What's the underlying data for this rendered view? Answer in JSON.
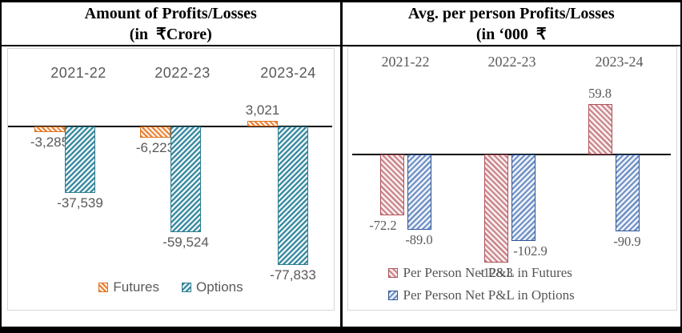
{
  "chart_data": [
    {
      "type": "bar",
      "panel": "left",
      "title_lines": [
        "Amount of Profits/Losses",
        "(in  ₹Crore)"
      ],
      "categories": [
        "2021-22",
        "2022-23",
        "2023-24"
      ],
      "series": [
        {
          "name": "Futures",
          "values": [
            -3285,
            -6223,
            3021
          ],
          "labels": [
            "-3,285",
            "-6,223",
            "3,021"
          ]
        },
        {
          "name": "Options",
          "values": [
            -37539,
            -59524,
            -77833
          ],
          "labels": [
            "-37,539",
            "-59,524",
            "-77,833"
          ]
        }
      ],
      "legend": {
        "position": "bottom-center",
        "entries": [
          "Futures",
          "Options"
        ]
      },
      "axis": {
        "baseline": 0,
        "gridlines": false,
        "approx_value_range": [
          -80000,
          10000
        ]
      },
      "colors": {
        "futures": "#ed7d31",
        "options": "#31859c",
        "label_text": "#595959",
        "axis": "#000000"
      }
    },
    {
      "type": "bar",
      "panel": "right",
      "title_lines": [
        "Avg. per person Profits/Losses",
        "(in ‘000  ₹"
      ],
      "categories": [
        "2021-22",
        "2022-23",
        "2023-24"
      ],
      "series": [
        {
          "name": "Per Person Net P&L in Futures",
          "values": [
            -72.2,
            -128.3,
            59.8
          ],
          "labels": [
            "-72.2",
            "-128.3",
            "59.8"
          ]
        },
        {
          "name": "Per Person Net P&L in Options",
          "values": [
            -89.0,
            -102.9,
            -90.9
          ],
          "labels": [
            "-89.0",
            "-102.9",
            "-90.9"
          ]
        }
      ],
      "legend": {
        "position": "bottom-left",
        "entries": [
          "Per Person Net P&L in Futures",
          "Per Person Net P&L in Options"
        ]
      },
      "axis": {
        "baseline": 0,
        "gridlines": false,
        "approx_value_range": [
          -140,
          70
        ]
      },
      "colors": {
        "futures": "#c0504d",
        "options": "#4472c4",
        "label_text": "#595959",
        "axis": "#000000"
      }
    }
  ]
}
